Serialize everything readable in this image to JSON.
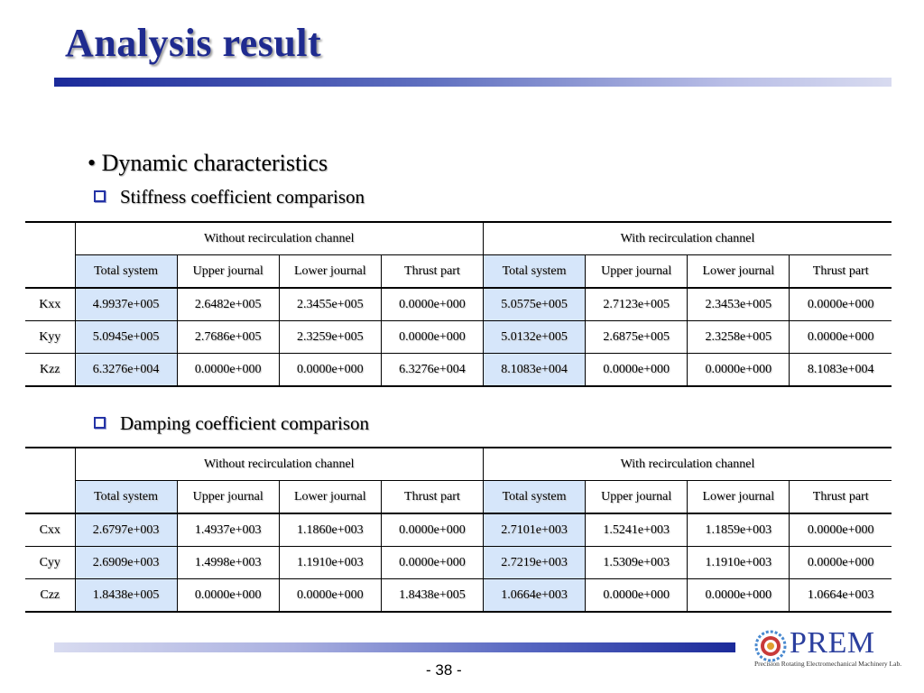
{
  "title": "Analysis result",
  "bullet": "• Dynamic characteristics",
  "stiffness": {
    "heading": "Stiffness coefficient comparison",
    "group_without": "Without recirculation channel",
    "group_with": "With recirculation channel",
    "columns": [
      "Total system",
      "Upper journal",
      "Lower journal",
      "Thrust part",
      "Total system",
      "Upper journal",
      "Lower journal",
      "Thrust part"
    ],
    "rows": [
      {
        "label": "Kxx",
        "cells": [
          "4.9937e+005",
          "2.6482e+005",
          "2.3455e+005",
          "0.0000e+000",
          "5.0575e+005",
          "2.7123e+005",
          "2.3453e+005",
          "0.0000e+000"
        ]
      },
      {
        "label": "Kyy",
        "cells": [
          "5.0945e+005",
          "2.7686e+005",
          "2.3259e+005",
          "0.0000e+000",
          "5.0132e+005",
          "2.6875e+005",
          "2.3258e+005",
          "0.0000e+000"
        ]
      },
      {
        "label": "Kzz",
        "cells": [
          "6.3276e+004",
          "0.0000e+000",
          "0.0000e+000",
          "6.3276e+004",
          "8.1083e+004",
          "0.0000e+000",
          "0.0000e+000",
          "8.1083e+004"
        ]
      }
    ]
  },
  "damping": {
    "heading": "Damping coefficient comparison",
    "group_without": "Without recirculation channel",
    "group_with": "With recirculation channel",
    "columns": [
      "Total system",
      "Upper journal",
      "Lower journal",
      "Thrust part",
      "Total system",
      "Upper journal",
      "Lower journal",
      "Thrust part"
    ],
    "rows": [
      {
        "label": "Cxx",
        "cells": [
          "2.6797e+003",
          "1.4937e+003",
          "1.1860e+003",
          "0.0000e+000",
          "2.7101e+003",
          "1.5241e+003",
          "1.1859e+003",
          "0.0000e+000"
        ]
      },
      {
        "label": "Cyy",
        "cells": [
          "2.6909e+003",
          "1.4998e+003",
          "1.1910e+003",
          "0.0000e+000",
          "2.7219e+003",
          "1.5309e+003",
          "1.1910e+003",
          "0.0000e+000"
        ]
      },
      {
        "label": "Czz",
        "cells": [
          "1.8438e+005",
          "0.0000e+000",
          "0.0000e+000",
          "1.8438e+005",
          "1.0664e+003",
          "0.0000e+000",
          "0.0000e+000",
          "1.0664e+003"
        ]
      }
    ]
  },
  "page_number": "- 38 -",
  "logo": {
    "name": "PREM",
    "subtitle": "Precision Rotating Electromechanical Machinery Lab.",
    "icon": "gear-logo-icon"
  },
  "colors": {
    "title": "#1f2b8f",
    "highlight": "#d6e6fa",
    "accent": "#1b2a9a"
  }
}
